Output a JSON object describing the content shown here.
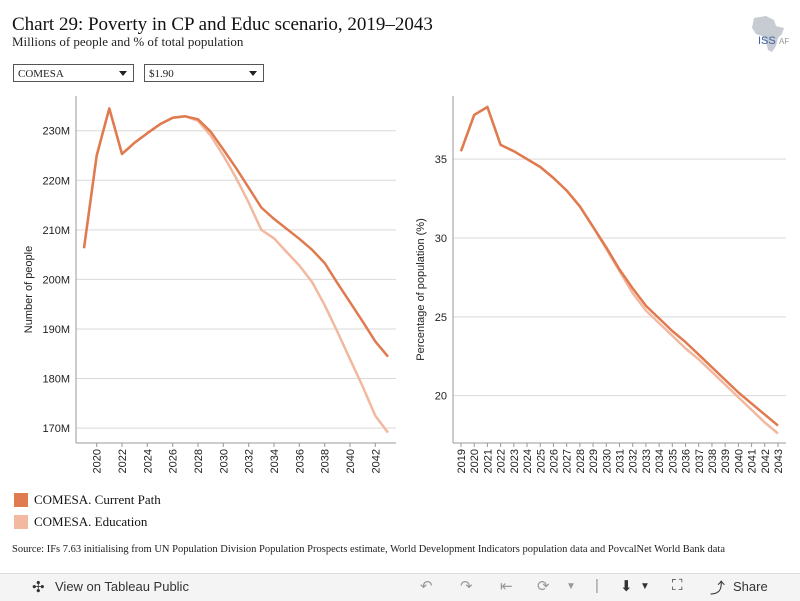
{
  "header": {
    "title": "Chart 29: Poverty in CP and Educ scenario, 2019–2043",
    "subtitle": "Millions of people and % of total population",
    "logo_text": "ISS",
    "logo_suffix": "AF"
  },
  "filters": {
    "region": "COMESA",
    "poverty_line": "$1.90"
  },
  "colors": {
    "current_path": "#e07a4f",
    "education": "#f2b8a0",
    "grid": "#d9d9d9"
  },
  "chart_data": [
    {
      "type": "line",
      "ylabel": "Number of people",
      "ylim": [
        167,
        237
      ],
      "yticks": [
        170,
        180,
        190,
        200,
        210,
        220,
        230
      ],
      "ytick_labels": [
        "170M",
        "180M",
        "190M",
        "200M",
        "210M",
        "220M",
        "230M"
      ],
      "xticks": [
        2020,
        2022,
        2024,
        2026,
        2028,
        2030,
        2032,
        2034,
        2036,
        2038,
        2040,
        2042
      ],
      "x": [
        2019,
        2020,
        2021,
        2022,
        2023,
        2024,
        2025,
        2026,
        2027,
        2028,
        2029,
        2030,
        2031,
        2032,
        2033,
        2034,
        2035,
        2036,
        2037,
        2038,
        2039,
        2040,
        2041,
        2042,
        2043
      ],
      "series": [
        {
          "name": "COMESA. Current Path",
          "values": [
            206.3,
            225,
            234.5,
            225.3,
            227.6,
            229.5,
            231.3,
            232.6,
            232.9,
            232.3,
            229.8,
            226.2,
            222.5,
            218.5,
            214.5,
            212.2,
            210.2,
            208.2,
            206,
            203.3,
            199.3,
            195.4,
            191.5,
            187.5,
            184.4
          ]
        },
        {
          "name": "COMESA. Education",
          "values": [
            206.3,
            225,
            234.5,
            225.3,
            227.6,
            229.5,
            231.3,
            232.6,
            232.9,
            232,
            229,
            225,
            220.5,
            215.5,
            210,
            208.3,
            205.5,
            202.8,
            199.5,
            194.8,
            189.5,
            183.9,
            178.4,
            172.5,
            169.1
          ]
        }
      ]
    },
    {
      "type": "line",
      "ylabel": "Percentage of population (%)",
      "ylim": [
        17,
        39
      ],
      "yticks": [
        20,
        25,
        30,
        35
      ],
      "ytick_labels": [
        "20",
        "25",
        "30",
        "35"
      ],
      "xticks": [
        2019,
        2020,
        2021,
        2022,
        2023,
        2024,
        2025,
        2026,
        2027,
        2028,
        2029,
        2030,
        2031,
        2032,
        2033,
        2034,
        2035,
        2036,
        2037,
        2038,
        2039,
        2040,
        2041,
        2042,
        2043
      ],
      "x": [
        2019,
        2020,
        2021,
        2022,
        2023,
        2024,
        2025,
        2026,
        2027,
        2028,
        2029,
        2030,
        2031,
        2032,
        2033,
        2034,
        2035,
        2036,
        2037,
        2038,
        2039,
        2040,
        2041,
        2042,
        2043
      ],
      "series": [
        {
          "name": "COMESA. Current Path",
          "values": [
            35.5,
            37.8,
            38.3,
            35.9,
            35.5,
            35,
            34.5,
            33.8,
            33,
            32,
            30.7,
            29.4,
            28,
            26.8,
            25.7,
            24.9,
            24.1,
            23.4,
            22.6,
            21.8,
            21,
            20.2,
            19.5,
            18.8,
            18.1
          ]
        },
        {
          "name": "COMESA. Education",
          "values": [
            35.5,
            37.8,
            38.3,
            35.9,
            35.5,
            35,
            34.5,
            33.8,
            33,
            32,
            30.7,
            29.3,
            27.9,
            26.5,
            25.4,
            24.6,
            23.8,
            23,
            22.3,
            21.5,
            20.7,
            19.9,
            19.1,
            18.3,
            17.6
          ]
        }
      ]
    }
  ],
  "legend": [
    {
      "label": "COMESA. Current Path"
    },
    {
      "label": "COMESA. Education"
    }
  ],
  "source": "Source: IFs 7.63 initialising from UN Population Division Population Prospects estimate, World Development Indicators population data and PovcalNet World Bank data",
  "toolbar": {
    "view_label": "View on Tableau Public",
    "share_label": "Share",
    "undo_icon": "undo-icon",
    "redo_icon": "redo-icon",
    "revert_icon": "revert-icon",
    "refresh_icon": "refresh-icon",
    "download_icon": "download-icon",
    "fullscreen_icon": "fullscreen-icon",
    "share_icon": "share-icon"
  }
}
